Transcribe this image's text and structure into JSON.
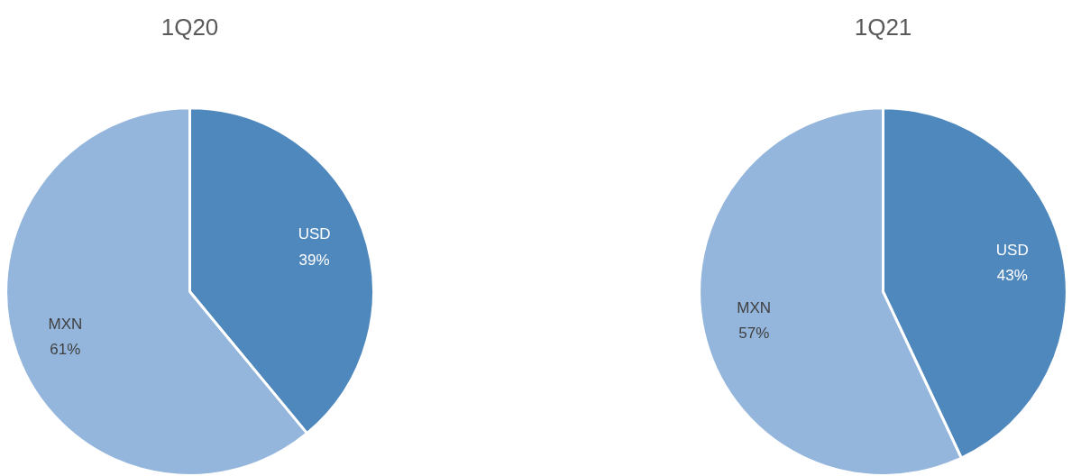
{
  "chart_data": [
    {
      "type": "pie",
      "title": "1Q20",
      "categories": [
        "USD",
        "MXN"
      ],
      "values": [
        39,
        61
      ],
      "colors": [
        "#4f88bc",
        "#95b6dc"
      ],
      "value_labels": [
        "39%",
        "61%"
      ]
    },
    {
      "type": "pie",
      "title": "1Q21",
      "categories": [
        "USD",
        "MXN"
      ],
      "values": [
        43,
        57
      ],
      "colors": [
        "#4f88bc",
        "#95b6dc"
      ],
      "value_labels": [
        "43%",
        "57%"
      ]
    }
  ]
}
